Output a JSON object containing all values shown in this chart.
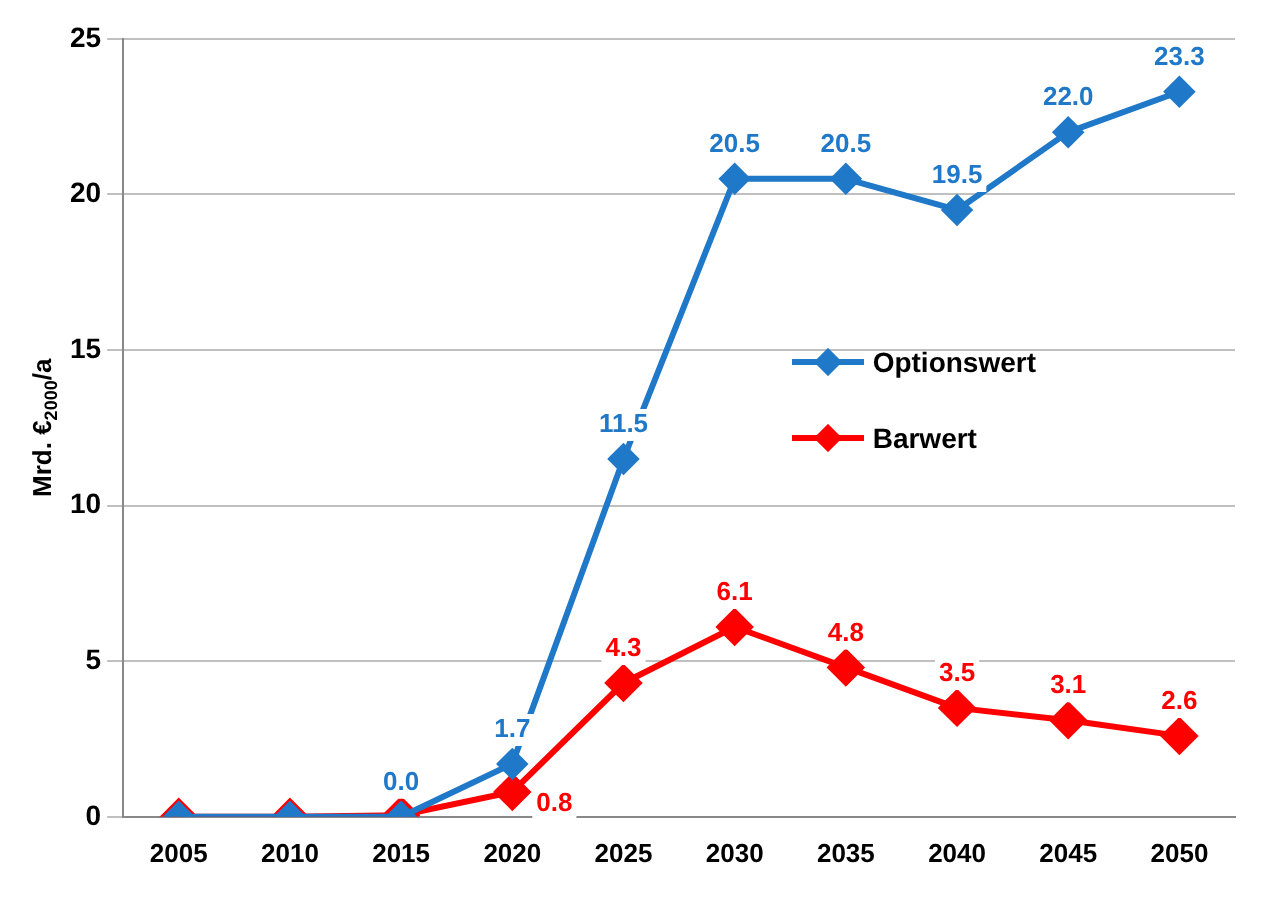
{
  "chart_data": {
    "type": "line",
    "ylabel": "Mrd. €$_{2000}$/a",
    "categories": [
      "2005",
      "2010",
      "2015",
      "2020",
      "2025",
      "2030",
      "2035",
      "2040",
      "2045",
      "2050"
    ],
    "series": [
      {
        "name": "Optionswert",
        "color": "#1f78c8",
        "values": [
          0,
          0,
          0,
          1.7,
          11.5,
          20.5,
          20.5,
          19.5,
          22.0,
          23.3
        ],
        "value_labels": [
          null,
          null,
          "0.0",
          "1.7",
          "11.5",
          "20.5",
          "20.5",
          "19.5",
          "22.0",
          "23.3"
        ]
      },
      {
        "name": "Barwert",
        "color": "#ff0000",
        "values": [
          0,
          0,
          0.05,
          0.8,
          4.3,
          6.1,
          4.8,
          3.5,
          3.1,
          2.6
        ],
        "value_labels": [
          null,
          null,
          null,
          "0.8",
          "4.3",
          "6.1",
          "4.8",
          "3.5",
          "3.1",
          "2.6"
        ]
      }
    ],
    "ylim": [
      0,
      25
    ],
    "yticks": [
      0,
      5,
      10,
      15,
      20,
      25
    ],
    "grid": "y",
    "legend": "right",
    "marker": "diamond",
    "line_style": "solid"
  }
}
